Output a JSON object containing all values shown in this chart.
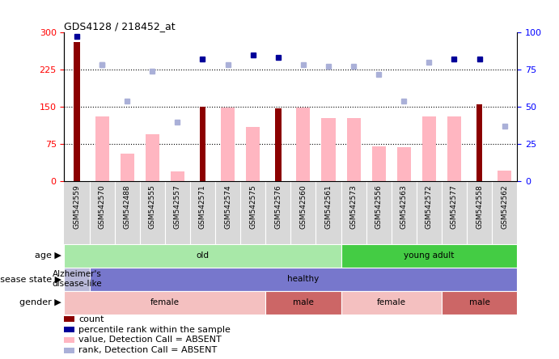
{
  "title": "GDS4128 / 218452_at",
  "samples": [
    "GSM542559",
    "GSM542570",
    "GSM542488",
    "GSM542555",
    "GSM542557",
    "GSM542571",
    "GSM542574",
    "GSM542575",
    "GSM542576",
    "GSM542560",
    "GSM542561",
    "GSM542573",
    "GSM542556",
    "GSM542563",
    "GSM542572",
    "GSM542577",
    "GSM542558",
    "GSM542562"
  ],
  "count_values": [
    280,
    null,
    null,
    null,
    null,
    150,
    null,
    null,
    147,
    null,
    null,
    null,
    null,
    null,
    null,
    null,
    155,
    null
  ],
  "value_absent": [
    null,
    130,
    55,
    95,
    20,
    null,
    148,
    110,
    null,
    148,
    128,
    128,
    70,
    68,
    130,
    130,
    null,
    22
  ],
  "rank_absent_raw": [
    null,
    78,
    54,
    null,
    40,
    null,
    null,
    null,
    null,
    null,
    null,
    null,
    null,
    54,
    null,
    null,
    null,
    37
  ],
  "percentile_dark_raw": [
    97,
    null,
    null,
    null,
    null,
    82,
    null,
    85,
    83,
    null,
    null,
    null,
    null,
    null,
    null,
    82,
    82,
    null
  ],
  "percentile_light_raw": [
    null,
    78,
    null,
    74,
    null,
    null,
    78,
    null,
    null,
    78,
    77,
    77,
    72,
    null,
    80,
    null,
    null,
    null
  ],
  "ylim_left": [
    0,
    300
  ],
  "ylim_right": [
    0,
    100
  ],
  "yticks_left": [
    0,
    75,
    150,
    225,
    300
  ],
  "yticks_right": [
    0,
    25,
    50,
    75,
    100
  ],
  "hlines": [
    75,
    150,
    225
  ],
  "age_groups": [
    {
      "label": "old",
      "start": 0,
      "end": 11,
      "color": "#a8e8a8"
    },
    {
      "label": "young adult",
      "start": 11,
      "end": 18,
      "color": "#44cc44"
    }
  ],
  "disease_groups": [
    {
      "label": "Alzheimer's\ndisease-like",
      "start": 0,
      "end": 1,
      "color": "#b8b8d8"
    },
    {
      "label": "healthy",
      "start": 1,
      "end": 18,
      "color": "#7777cc"
    }
  ],
  "gender_groups": [
    {
      "label": "female",
      "start": 0,
      "end": 8,
      "color": "#f4c0c0"
    },
    {
      "label": "male",
      "start": 8,
      "end": 11,
      "color": "#cc6666"
    },
    {
      "label": "female",
      "start": 11,
      "end": 15,
      "color": "#f4c0c0"
    },
    {
      "label": "male",
      "start": 15,
      "end": 18,
      "color": "#cc6666"
    }
  ],
  "bar_color_dark": "#8b0000",
  "bar_color_light": "#ffb6c1",
  "dot_color_dark": "#000099",
  "dot_color_light": "#aab0d8",
  "legend_items": [
    {
      "label": "count",
      "color": "#8b0000"
    },
    {
      "label": "percentile rank within the sample",
      "color": "#000099"
    },
    {
      "label": "value, Detection Call = ABSENT",
      "color": "#ffb6c1"
    },
    {
      "label": "rank, Detection Call = ABSENT",
      "color": "#aab0d8"
    }
  ],
  "row_labels": [
    "age",
    "disease state",
    "gender"
  ]
}
